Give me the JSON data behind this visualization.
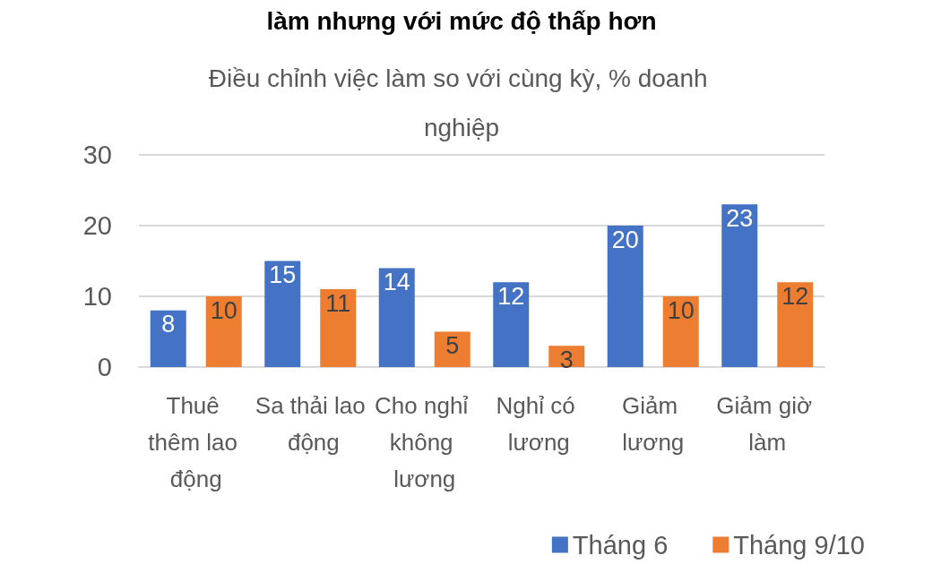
{
  "chart_data": {
    "type": "bar",
    "title": "Điều chỉnh việc làm so với cùng kỳ, % doanh nghiệp",
    "annotations": [
      "làm nhưng với mức độ thấp hơn"
    ],
    "categories": [
      "Thuê thêm lao động",
      "Sa thải lao động",
      "Cho nghỉ không lương",
      "Nghỉ có lương",
      "Giảm lương",
      "Giảm giờ làm"
    ],
    "series": [
      {
        "name": "Tháng 6",
        "color": "#4472c4",
        "values": [
          8,
          15,
          14,
          12,
          20,
          23
        ]
      },
      {
        "name": "Tháng 9/10",
        "color": "#ed7d31",
        "values": [
          10,
          11,
          5,
          3,
          10,
          12
        ]
      }
    ],
    "ylim": [
      0,
      30
    ],
    "yticks": [
      0,
      10,
      20,
      30
    ],
    "grid": "y",
    "legend": "bottom right",
    "data_labels": true
  }
}
